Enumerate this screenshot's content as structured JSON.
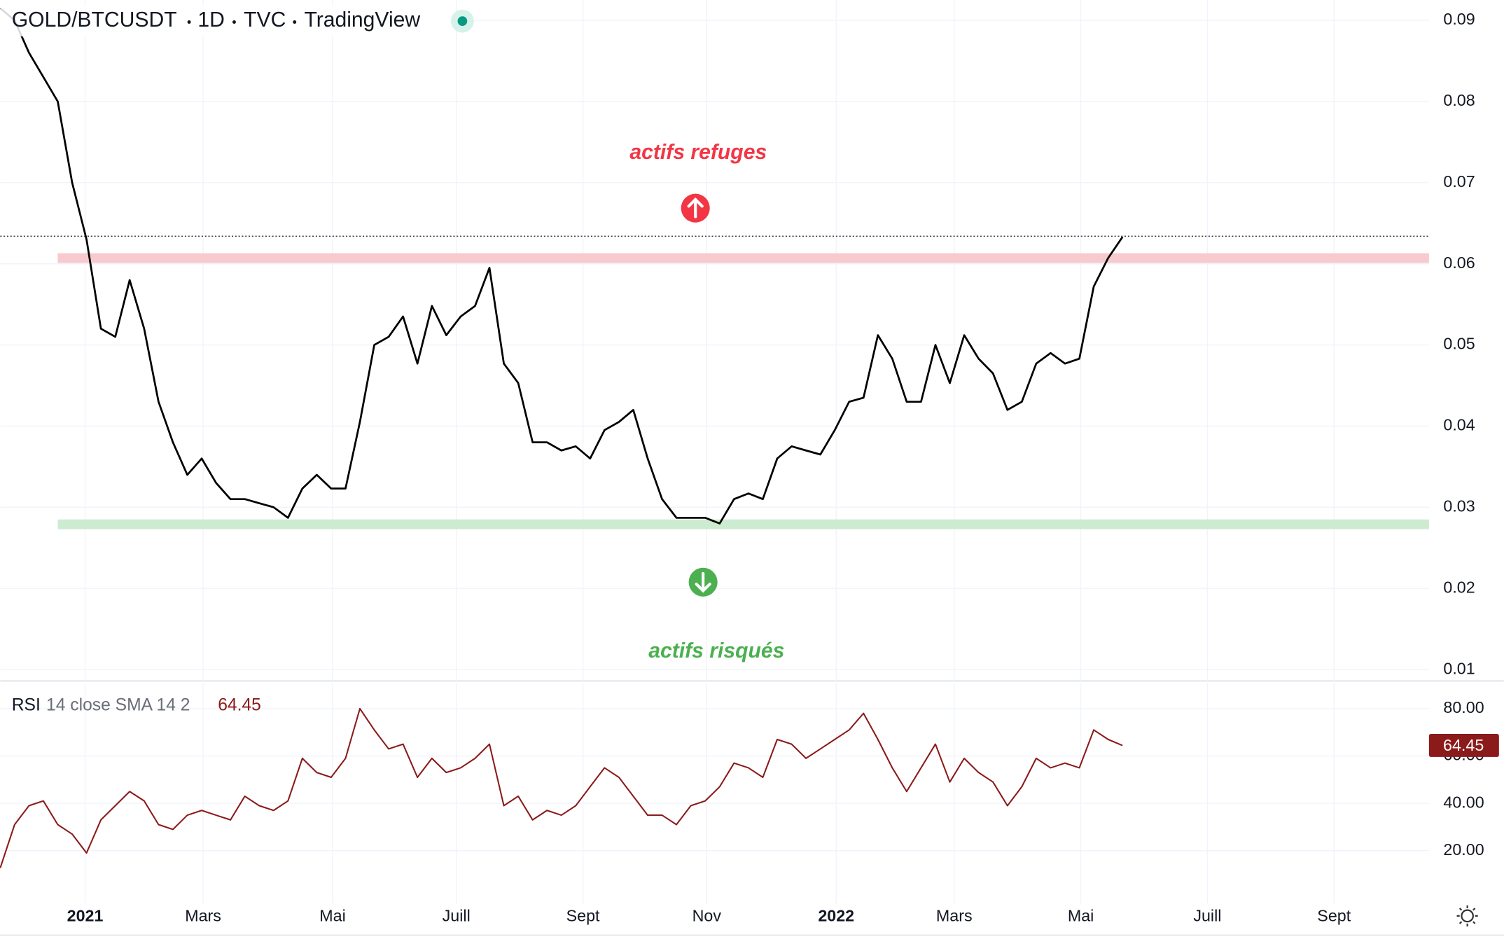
{
  "chart_data": [
    {
      "type": "line",
      "symbol": "GOLD/BTCUSDT",
      "interval": "1D",
      "source": "TVC",
      "platform": "TradingView",
      "color": "#000000",
      "values": [
        0.0915,
        0.09,
        0.086,
        0.083,
        0.08,
        0.07,
        0.063,
        0.052,
        0.051,
        0.058,
        0.052,
        0.043,
        0.038,
        0.034,
        0.036,
        0.033,
        0.031,
        0.031,
        0.0305,
        0.03,
        0.0287,
        0.0323,
        0.034,
        0.0323,
        0.0323,
        0.0405,
        0.05,
        0.051,
        0.0535,
        0.0477,
        0.0548,
        0.0512,
        0.0535,
        0.0548,
        0.0595,
        0.0477,
        0.0453,
        0.038,
        0.038,
        0.037,
        0.0375,
        0.036,
        0.0395,
        0.0405,
        0.042,
        0.036,
        0.031,
        0.0287,
        0.0287,
        0.0287,
        0.028,
        0.031,
        0.0317,
        0.031,
        0.036,
        0.0375,
        0.037,
        0.0365,
        0.0395,
        0.043,
        0.0435,
        0.0512,
        0.0483,
        0.043,
        0.043,
        0.05,
        0.0453,
        0.0512,
        0.0483,
        0.0465,
        0.042,
        0.043,
        0.0477,
        0.049,
        0.0477,
        0.0483,
        0.0572,
        0.0607,
        0.0633
      ],
      "xlim": [
        0,
        99.3
      ],
      "xticks": [
        {
          "value": 5.9,
          "label": "2021"
        },
        {
          "value": 14.1,
          "label": "Mars"
        },
        {
          "value": 23.1,
          "label": "Mai"
        },
        {
          "value": 31.7,
          "label": "Juill"
        },
        {
          "value": 40.5,
          "label": "Sept"
        },
        {
          "value": 49.1,
          "label": "Nov"
        },
        {
          "value": 58.1,
          "label": "2022"
        },
        {
          "value": 66.3,
          "label": "Mars"
        },
        {
          "value": 75.1,
          "label": "Mai"
        },
        {
          "value": 83.9,
          "label": "Juill"
        },
        {
          "value": 92.7,
          "label": "Sept"
        }
      ],
      "ylim": [
        0.0086,
        0.0925
      ],
      "yticks": [
        0.01,
        0.02,
        0.03,
        0.04,
        0.05,
        0.06,
        0.07,
        0.08,
        0.09
      ],
      "grid": true,
      "zones": [
        {
          "from": 0.0601,
          "to": 0.0613,
          "color": "#f8c9cd"
        },
        {
          "from": 0.0273,
          "to": 0.0285,
          "color": "#cdebd0"
        }
      ],
      "last_price_line": 0.0634,
      "annotations": [
        {
          "text": "actifs refuges",
          "color": "#f23645"
        },
        {
          "text": "actifs risqués",
          "color": "#4caf50"
        }
      ]
    },
    {
      "type": "line",
      "title": "RSI",
      "params": "14 close SMA 14 2",
      "color": "#8b1a1a",
      "values": [
        12.7,
        31,
        39,
        41,
        31,
        27,
        19,
        33,
        39,
        45,
        41,
        31,
        29,
        35,
        37,
        35,
        33,
        43,
        39,
        37,
        41,
        59,
        53,
        51,
        59,
        80,
        71,
        63,
        65,
        51,
        59,
        53,
        55,
        59,
        65,
        39,
        43,
        33,
        37,
        35,
        39,
        47,
        55,
        51,
        43,
        35,
        35,
        31,
        39,
        41,
        47,
        57,
        55,
        51,
        67,
        65,
        59,
        63,
        67,
        71,
        78,
        67,
        55,
        45,
        55,
        65,
        49,
        59,
        53,
        49,
        39,
        47,
        59,
        55,
        57,
        55,
        71,
        67,
        64.45
      ],
      "last_value": 64.45,
      "ylim": [
        -2.3,
        90.9
      ],
      "yticks": [
        {
          "value": 20,
          "label": "20.00"
        },
        {
          "value": 40,
          "label": "40.00"
        },
        {
          "value": 60,
          "label": "60.00"
        },
        {
          "value": 80,
          "label": "80.00"
        }
      ]
    }
  ]
}
